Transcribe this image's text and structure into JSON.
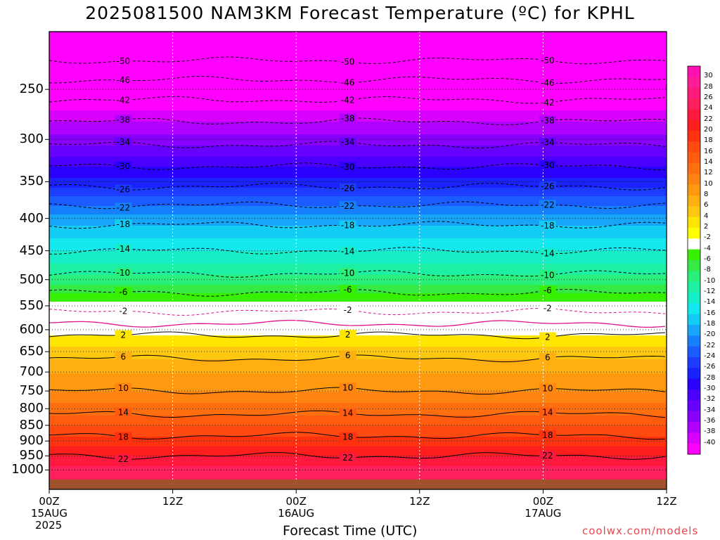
{
  "chart_data": {
    "type": "heatmap",
    "title": "2025081500 NAM3KM Forecast Temperature (ºC) for KPHL",
    "xlabel": "Forecast Time (UTC)",
    "ylabel": "",
    "credit": "coolwx.com/models",
    "x_ticks": [
      {
        "hour": 0,
        "label": "00Z",
        "date": "15AUG",
        "year": "2025"
      },
      {
        "hour": 12,
        "label": "12Z",
        "date": "",
        "year": ""
      },
      {
        "hour": 24,
        "label": "00Z",
        "date": "16AUG",
        "year": ""
      },
      {
        "hour": 36,
        "label": "12Z",
        "date": "",
        "year": ""
      },
      {
        "hour": 48,
        "label": "00Z",
        "date": "17AUG",
        "year": ""
      },
      {
        "hour": 60,
        "label": "12Z",
        "date": "",
        "year": ""
      }
    ],
    "xlim": [
      0,
      60
    ],
    "y_ticks": [
      250,
      300,
      350,
      400,
      450,
      500,
      550,
      600,
      650,
      700,
      750,
      800,
      850,
      900,
      950,
      1000
    ],
    "ylim_hPa": [
      200,
      1025
    ],
    "y_scale": "log-pressure",
    "colorbar": {
      "labels": [
        30,
        28,
        26,
        24,
        22,
        20,
        18,
        16,
        14,
        12,
        10,
        8,
        6,
        4,
        2,
        -2,
        -4,
        -6,
        -8,
        -10,
        -12,
        -14,
        -16,
        -18,
        -20,
        -22,
        -24,
        -26,
        -28,
        -30,
        -32,
        -34,
        -36,
        -38,
        -40
      ],
      "colors": [
        "#ff11b0",
        "#ff1d98",
        "#ff1a7c",
        "#ff1f5c",
        "#ff193f",
        "#ff1e1e",
        "#ff3210",
        "#ff4b10",
        "#ff5c10",
        "#ff6f10",
        "#ff8410",
        "#ff9a10",
        "#ffb010",
        "#ffc810",
        "#ffe600",
        "#ffff00",
        "#ffffff",
        "#37f000",
        "#35ea45",
        "#28f07a",
        "#1ef0a3",
        "#16eec8",
        "#13e8ef",
        "#13ccf4",
        "#16a5f8",
        "#1680ff",
        "#1a5cff",
        "#1e3cff",
        "#1a22ff",
        "#2a00ff",
        "#4b00ff",
        "#6600ff",
        "#8a00ff",
        "#b000ff",
        "#d800ff",
        "#ff00ff"
      ]
    },
    "isotherm_labels_dashed": [
      -50,
      -46,
      -42,
      -38,
      -34,
      -30,
      -26,
      -22,
      -18,
      -14,
      -10,
      -6,
      -2
    ],
    "isotherm_labels_solid": [
      2,
      6,
      10,
      14,
      18,
      22
    ],
    "profile_at_hour": [
      {
        "pressure": 200,
        "temp": -54
      },
      {
        "pressure": 225,
        "temp": -50
      },
      {
        "pressure": 250,
        "temp": -44
      },
      {
        "pressure": 275,
        "temp": -39
      },
      {
        "pressure": 300,
        "temp": -35
      },
      {
        "pressure": 325,
        "temp": -31
      },
      {
        "pressure": 350,
        "temp": -27
      },
      {
        "pressure": 375,
        "temp": -23
      },
      {
        "pressure": 400,
        "temp": -19
      },
      {
        "pressure": 450,
        "temp": -14
      },
      {
        "pressure": 500,
        "temp": -9
      },
      {
        "pressure": 550,
        "temp": -3
      },
      {
        "pressure": 600,
        "temp": 1
      },
      {
        "pressure": 650,
        "temp": 5
      },
      {
        "pressure": 700,
        "temp": 8
      },
      {
        "pressure": 750,
        "temp": 10
      },
      {
        "pressure": 800,
        "temp": 13
      },
      {
        "pressure": 850,
        "temp": 16
      },
      {
        "pressure": 900,
        "temp": 19
      },
      {
        "pressure": 950,
        "temp": 22
      },
      {
        "pressure": 1000,
        "temp": 25
      }
    ]
  }
}
